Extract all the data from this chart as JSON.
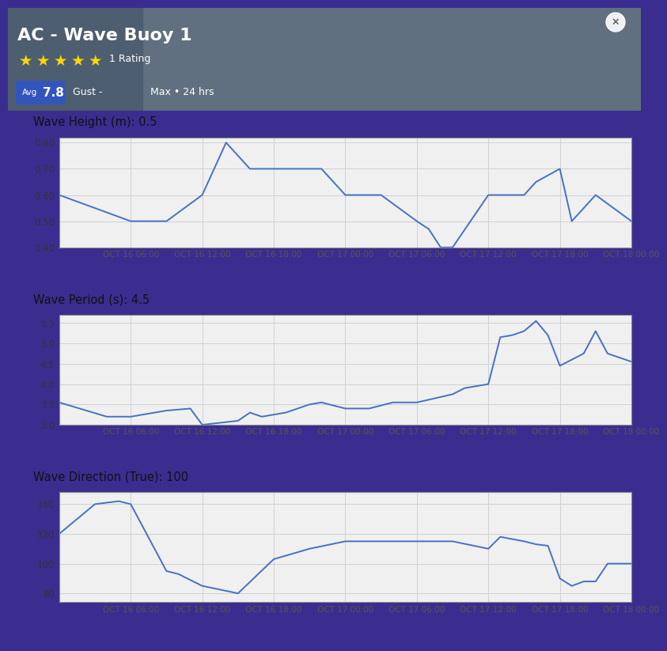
{
  "header_bg_color": "#546880",
  "title": "AC - Wave Buoy 1",
  "avg_label": "Avg",
  "avg_value": "7.8",
  "gust_label": "Gust -",
  "max_label": "Max • 24 hrs",
  "stars": 5,
  "rating_label": "1 Rating",
  "outer_bg": "#3b2d8f",
  "chart_section_bg": "#ffffff",
  "chart_plot_bg": "#f0f0f0",
  "chart_line_color": "#4472c4",
  "grid_color": "#d0d0d0",
  "chart1_title": "Wave Height (m): 0.5",
  "chart1_ylim": [
    0.4,
    0.82
  ],
  "chart1_yticks": [
    0.4,
    0.5,
    0.6,
    0.7,
    0.8
  ],
  "chart1_yticklabels": [
    "0.40",
    "0.50",
    "0.60",
    "0.70",
    "0.80"
  ],
  "chart1_x": [
    0,
    3,
    6,
    9,
    12,
    12.5,
    13,
    14,
    16,
    19,
    22,
    24,
    24.5,
    27,
    30,
    31,
    32,
    33,
    36,
    39,
    40,
    42,
    43,
    45,
    48
  ],
  "chart1_y": [
    0.6,
    0.55,
    0.5,
    0.5,
    0.6,
    0.65,
    0.7,
    0.8,
    0.7,
    0.7,
    0.7,
    0.6,
    0.6,
    0.6,
    0.5,
    0.47,
    0.4,
    0.4,
    0.6,
    0.6,
    0.65,
    0.7,
    0.5,
    0.6,
    0.5
  ],
  "chart2_title": "Wave Period (s): 4.5",
  "chart2_ylim": [
    3.0,
    5.7
  ],
  "chart2_yticks": [
    3.0,
    3.5,
    4.0,
    4.5,
    5.0,
    5.5
  ],
  "chart2_yticklabels": [
    "3.0",
    "3.5",
    "4.0",
    "4.5",
    "5.0",
    "5.5"
  ],
  "chart2_x": [
    0,
    4,
    6,
    9,
    11,
    12,
    15,
    16,
    17,
    19,
    21,
    22,
    24,
    26,
    28,
    30,
    33,
    34,
    36,
    37,
    38,
    39,
    40,
    41,
    42,
    44,
    45,
    46,
    48
  ],
  "chart2_y": [
    3.55,
    3.2,
    3.2,
    3.35,
    3.4,
    3.0,
    3.1,
    3.3,
    3.2,
    3.3,
    3.5,
    3.55,
    3.4,
    3.4,
    3.55,
    3.55,
    3.75,
    3.9,
    4.0,
    5.15,
    5.2,
    5.3,
    5.55,
    5.2,
    4.45,
    4.75,
    5.3,
    4.75,
    4.55
  ],
  "chart3_title": "Wave Direction (True): 100",
  "chart3_ylim": [
    74,
    148
  ],
  "chart3_yticks": [
    80,
    100,
    120,
    140
  ],
  "chart3_yticklabels": [
    "80",
    "100",
    "120",
    "140"
  ],
  "chart3_x": [
    0,
    3,
    5,
    6,
    9,
    10,
    12,
    15,
    18,
    21,
    24,
    27,
    30,
    33,
    36,
    37,
    39,
    40,
    41,
    42,
    43,
    44,
    45,
    46,
    48
  ],
  "chart3_y": [
    120,
    140,
    142,
    140,
    95,
    93,
    85,
    80,
    103,
    110,
    115,
    115,
    115,
    115,
    110,
    118,
    115,
    113,
    112,
    90,
    85,
    88,
    88,
    100,
    100
  ],
  "x_tick_positions": [
    0,
    6,
    12,
    18,
    24,
    30,
    36,
    42,
    48
  ],
  "x_tick_labels": [
    "",
    "OCT 16 06:00",
    "OCT 16 12:00",
    "OCT 16 18:00",
    "OCT 17 00:00",
    "OCT 17 06:00",
    "OCT 17 12:00",
    "OCT 17 18:00",
    "OCT 18 00:00"
  ]
}
